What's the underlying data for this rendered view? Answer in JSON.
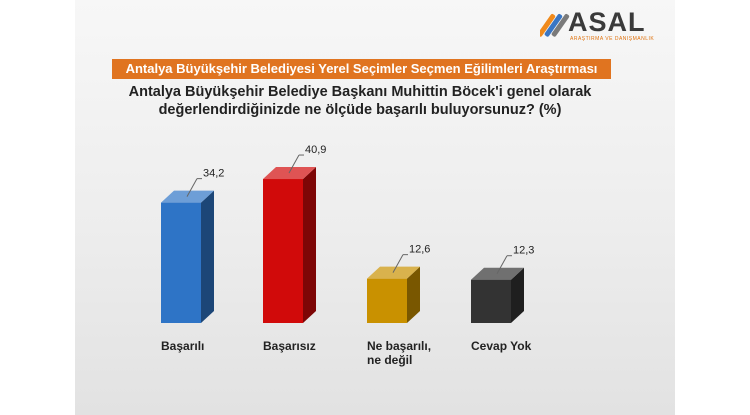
{
  "logo": {
    "name": "ASAL",
    "tagline": "ARAŞTIRMA VE DANIŞMANLIK"
  },
  "banner": "Antalya Büyükşehir Belediyesi Yerel Seçimler Seçmen Eğilimleri Araştırması",
  "question_line1": "Antalya Büyükşehir Belediye Başkanı Muhittin Böcek'i genel olarak",
  "question_line2": "değerlendirdiğinizde ne ölçüde başarılı buluyorsunuz? (%)",
  "chart_data": {
    "type": "bar",
    "title": "Antalya Büyükşehir Belediye Başkanı Muhittin Böcek'i genel olarak değerlendirdiğinizde ne ölçüde başarılı buluyorsunuz? (%)",
    "categories": [
      "Başarılı",
      "Başarısız",
      "Ne başarılı, ne değil",
      "Cevap Yok"
    ],
    "values": [
      34.2,
      40.9,
      12.6,
      12.3
    ],
    "value_labels": [
      "34,2",
      "40,9",
      "12,6",
      "12,3"
    ],
    "colors": [
      "#2e74c6",
      "#d10a0a",
      "#c99100",
      "#333333"
    ],
    "ylim": [
      0,
      45
    ],
    "grid": false,
    "legend": "none"
  }
}
